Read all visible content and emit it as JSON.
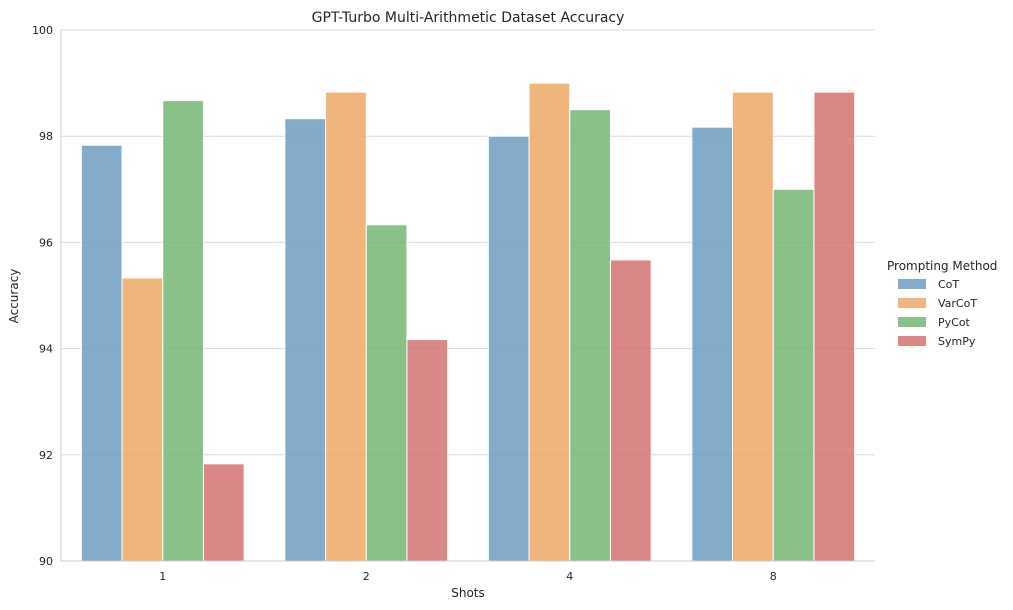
{
  "chart_data": {
    "type": "bar",
    "title": "GPT-Turbo Multi-Arithmetic Dataset Accuracy",
    "xlabel": "Shots",
    "ylabel": "Accuracy",
    "categories": [
      "1",
      "2",
      "4",
      "8"
    ],
    "ylim": [
      90,
      100
    ],
    "yticks": [
      90,
      92,
      94,
      96,
      98,
      100
    ],
    "grid": true,
    "legend_title": "Prompting Method",
    "legend_position": "right",
    "series": [
      {
        "name": "CoT",
        "color": "#6f9ec1",
        "values": [
          97.83,
          98.33,
          98.0,
          98.17
        ]
      },
      {
        "name": "VarCoT",
        "color": "#eda766",
        "values": [
          95.33,
          98.83,
          99.0,
          98.83
        ]
      },
      {
        "name": "PyCot",
        "color": "#74b673",
        "values": [
          98.67,
          96.33,
          98.5,
          97.0
        ]
      },
      {
        "name": "SymPy",
        "color": "#d37272",
        "values": [
          91.83,
          94.17,
          95.67,
          98.83
        ]
      }
    ]
  }
}
